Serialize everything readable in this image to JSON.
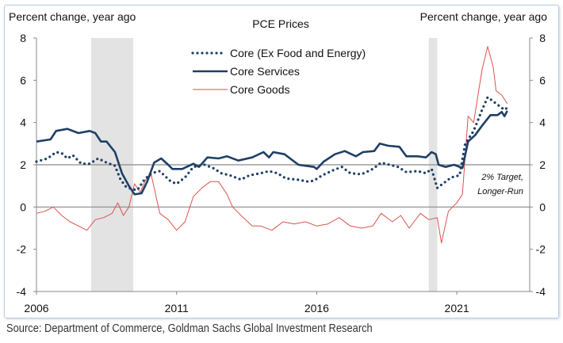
{
  "chart_data": {
    "type": "line",
    "title": "PCE Prices",
    "ylabel_left": "Percent change, year ago",
    "ylabel_right": "Percent change, year ago",
    "xlim": [
      2006,
      2023.6
    ],
    "ylim": [
      -4,
      8
    ],
    "yticks": [
      -4,
      -2,
      0,
      2,
      4,
      6,
      8
    ],
    "ytick_labels": [
      "-4",
      "-2",
      "0",
      "2",
      "4",
      "6",
      "8"
    ],
    "xticks": [
      2006,
      2011,
      2016,
      2021
    ],
    "xtick_labels": [
      "2006",
      "2011",
      "2016",
      "2021"
    ],
    "reference_lines": [
      0,
      2
    ],
    "annotation": [
      "2% Target,",
      "Longer-Run"
    ],
    "recessions": [
      [
        2007.95,
        2009.45
      ],
      [
        2020.0,
        2020.3
      ]
    ],
    "legend_position": "top-center",
    "series": [
      {
        "name": "Core (Ex Food and Energy)",
        "style": "dotted",
        "color": "#1f3f66",
        "points": [
          [
            2006.0,
            2.15
          ],
          [
            2006.4,
            2.3
          ],
          [
            2006.7,
            2.6
          ],
          [
            2006.9,
            2.55
          ],
          [
            2007.1,
            2.3
          ],
          [
            2007.3,
            2.45
          ],
          [
            2007.6,
            2.05
          ],
          [
            2007.9,
            2.05
          ],
          [
            2008.2,
            2.3
          ],
          [
            2008.5,
            2.1
          ],
          [
            2008.8,
            1.95
          ],
          [
            2009.0,
            1.3
          ],
          [
            2009.2,
            0.95
          ],
          [
            2009.4,
            0.85
          ],
          [
            2009.6,
            0.8
          ],
          [
            2009.85,
            1.3
          ],
          [
            2010.1,
            1.6
          ],
          [
            2010.4,
            1.7
          ],
          [
            2010.8,
            1.2
          ],
          [
            2011.0,
            1.1
          ],
          [
            2011.3,
            1.4
          ],
          [
            2011.6,
            1.9
          ],
          [
            2012.0,
            2.0
          ],
          [
            2012.3,
            1.85
          ],
          [
            2012.6,
            1.6
          ],
          [
            2012.9,
            1.5
          ],
          [
            2013.3,
            1.3
          ],
          [
            2013.6,
            1.5
          ],
          [
            2014.0,
            1.6
          ],
          [
            2014.3,
            1.7
          ],
          [
            2014.6,
            1.6
          ],
          [
            2014.9,
            1.35
          ],
          [
            2015.3,
            1.3
          ],
          [
            2015.7,
            1.2
          ],
          [
            2015.9,
            1.25
          ],
          [
            2016.2,
            1.5
          ],
          [
            2016.6,
            1.75
          ],
          [
            2016.9,
            1.9
          ],
          [
            2017.2,
            1.6
          ],
          [
            2017.6,
            1.55
          ],
          [
            2018.0,
            1.8
          ],
          [
            2018.3,
            2.1
          ],
          [
            2018.6,
            2.0
          ],
          [
            2018.9,
            1.9
          ],
          [
            2019.2,
            1.65
          ],
          [
            2019.6,
            1.7
          ],
          [
            2019.9,
            1.6
          ],
          [
            2020.1,
            1.8
          ],
          [
            2020.3,
            0.9
          ],
          [
            2020.5,
            1.1
          ],
          [
            2020.8,
            1.4
          ],
          [
            2021.1,
            1.5
          ],
          [
            2021.3,
            3.0
          ],
          [
            2021.6,
            3.6
          ],
          [
            2021.9,
            4.6
          ],
          [
            2022.1,
            5.2
          ],
          [
            2022.3,
            5.0
          ],
          [
            2022.5,
            4.8
          ],
          [
            2022.7,
            4.6
          ],
          [
            2022.8,
            4.7
          ]
        ]
      },
      {
        "name": "Core Services",
        "style": "solid",
        "color": "#1f3f66",
        "points": [
          [
            2006.0,
            3.1
          ],
          [
            2006.5,
            3.2
          ],
          [
            2006.7,
            3.6
          ],
          [
            2007.1,
            3.7
          ],
          [
            2007.5,
            3.5
          ],
          [
            2007.9,
            3.6
          ],
          [
            2008.1,
            3.5
          ],
          [
            2008.3,
            3.1
          ],
          [
            2008.5,
            3.1
          ],
          [
            2008.8,
            2.6
          ],
          [
            2009.05,
            1.6
          ],
          [
            2009.3,
            1.0
          ],
          [
            2009.5,
            0.6
          ],
          [
            2009.75,
            0.65
          ],
          [
            2009.95,
            1.2
          ],
          [
            2010.2,
            2.1
          ],
          [
            2010.45,
            2.3
          ],
          [
            2010.7,
            2.0
          ],
          [
            2010.85,
            1.8
          ],
          [
            2011.2,
            1.8
          ],
          [
            2011.6,
            2.05
          ],
          [
            2011.8,
            1.9
          ],
          [
            2012.1,
            2.35
          ],
          [
            2012.5,
            2.3
          ],
          [
            2012.8,
            2.4
          ],
          [
            2013.2,
            2.2
          ],
          [
            2013.7,
            2.35
          ],
          [
            2014.1,
            2.6
          ],
          [
            2014.3,
            2.35
          ],
          [
            2014.45,
            2.6
          ],
          [
            2014.85,
            2.5
          ],
          [
            2015.35,
            2.0
          ],
          [
            2015.9,
            1.9
          ],
          [
            2016.0,
            1.8
          ],
          [
            2016.25,
            2.15
          ],
          [
            2016.65,
            2.5
          ],
          [
            2017.0,
            2.65
          ],
          [
            2017.4,
            2.4
          ],
          [
            2017.65,
            2.6
          ],
          [
            2018.05,
            2.65
          ],
          [
            2018.25,
            3.0
          ],
          [
            2018.55,
            2.9
          ],
          [
            2018.95,
            2.85
          ],
          [
            2019.2,
            2.4
          ],
          [
            2019.6,
            2.4
          ],
          [
            2019.9,
            2.35
          ],
          [
            2020.1,
            2.6
          ],
          [
            2020.25,
            2.5
          ],
          [
            2020.35,
            2.0
          ],
          [
            2020.6,
            1.9
          ],
          [
            2020.9,
            2.0
          ],
          [
            2021.2,
            1.85
          ],
          [
            2021.4,
            3.1
          ],
          [
            2021.65,
            3.4
          ],
          [
            2021.9,
            3.85
          ],
          [
            2022.2,
            4.35
          ],
          [
            2022.45,
            4.35
          ],
          [
            2022.6,
            4.5
          ],
          [
            2022.7,
            4.3
          ],
          [
            2022.8,
            4.55
          ]
        ]
      },
      {
        "name": "Core Goods",
        "style": "solid",
        "color": "#d9534f",
        "points": [
          [
            2006.0,
            -0.3
          ],
          [
            2006.3,
            -0.2
          ],
          [
            2006.6,
            0.0
          ],
          [
            2006.9,
            -0.4
          ],
          [
            2007.2,
            -0.7
          ],
          [
            2007.5,
            -0.9
          ],
          [
            2007.8,
            -1.1
          ],
          [
            2008.1,
            -0.6
          ],
          [
            2008.4,
            -0.5
          ],
          [
            2008.7,
            -0.3
          ],
          [
            2008.9,
            0.2
          ],
          [
            2009.1,
            -0.4
          ],
          [
            2009.3,
            0.0
          ],
          [
            2009.5,
            1.1
          ],
          [
            2009.7,
            0.7
          ],
          [
            2009.9,
            1.3
          ],
          [
            2010.1,
            1.5
          ],
          [
            2010.4,
            -0.3
          ],
          [
            2010.7,
            -0.6
          ],
          [
            2011.0,
            -1.1
          ],
          [
            2011.3,
            -0.7
          ],
          [
            2011.6,
            0.5
          ],
          [
            2011.9,
            0.9
          ],
          [
            2012.2,
            1.2
          ],
          [
            2012.5,
            1.2
          ],
          [
            2012.8,
            0.6
          ],
          [
            2013.0,
            0.0
          ],
          [
            2013.3,
            -0.4
          ],
          [
            2013.7,
            -0.9
          ],
          [
            2014.0,
            -0.9
          ],
          [
            2014.4,
            -1.1
          ],
          [
            2014.8,
            -0.7
          ],
          [
            2015.2,
            -0.8
          ],
          [
            2015.6,
            -0.7
          ],
          [
            2016.0,
            -0.9
          ],
          [
            2016.4,
            -0.8
          ],
          [
            2016.8,
            -0.5
          ],
          [
            2017.2,
            -0.9
          ],
          [
            2017.6,
            -1.0
          ],
          [
            2018.0,
            -0.9
          ],
          [
            2018.3,
            -0.3
          ],
          [
            2018.7,
            -0.7
          ],
          [
            2019.0,
            -0.4
          ],
          [
            2019.3,
            -1.0
          ],
          [
            2019.7,
            -0.3
          ],
          [
            2020.0,
            -0.6
          ],
          [
            2020.3,
            -0.5
          ],
          [
            2020.45,
            -1.7
          ],
          [
            2020.7,
            -0.2
          ],
          [
            2021.0,
            0.2
          ],
          [
            2021.2,
            0.6
          ],
          [
            2021.4,
            4.3
          ],
          [
            2021.6,
            4.0
          ],
          [
            2021.9,
            6.5
          ],
          [
            2022.1,
            7.6
          ],
          [
            2022.3,
            6.6
          ],
          [
            2022.4,
            5.5
          ],
          [
            2022.6,
            5.3
          ],
          [
            2022.8,
            4.9
          ]
        ]
      }
    ]
  },
  "source": "Source: Department of Commerce, Goldman Sachs Global Investment Research"
}
